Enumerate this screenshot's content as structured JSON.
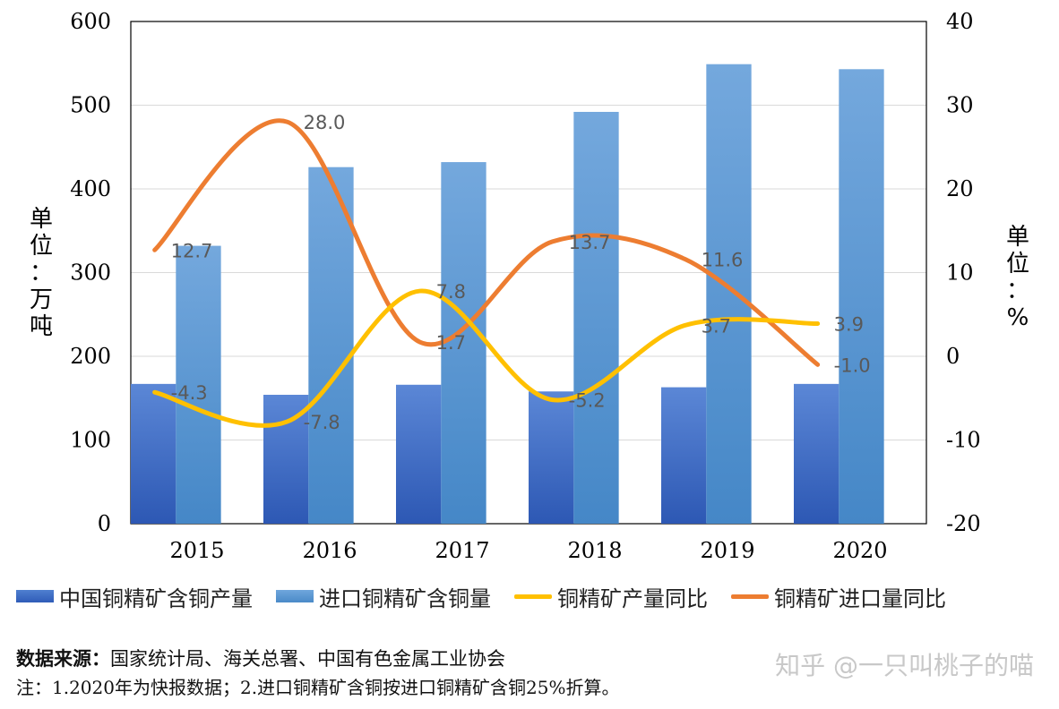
{
  "chart_data": {
    "type": "bar",
    "categories": [
      "2015",
      "2016",
      "2017",
      "2018",
      "2019",
      "2020"
    ],
    "ylabel_left": "单位：万吨",
    "ylabel_right": "单位：%",
    "ylim_left": [
      0,
      600
    ],
    "yticks_left": [
      "0",
      "100",
      "200",
      "300",
      "400",
      "500",
      "600"
    ],
    "ylim_right": [
      -20,
      40
    ],
    "yticks_right": [
      "-20",
      "-10",
      "0",
      "10",
      "20",
      "30",
      "40"
    ],
    "grid": true,
    "legend_position": "bottom",
    "series": [
      {
        "name": "中国铜精矿含铜产量",
        "type": "bar",
        "axis": "left",
        "color": "#4472C4",
        "values": [
          167,
          154,
          166,
          158,
          163,
          167
        ]
      },
      {
        "name": "进口铜精矿含铜量",
        "type": "bar",
        "axis": "left",
        "color": "#5B9BD5",
        "values": [
          332,
          426,
          432,
          492,
          549,
          543
        ]
      },
      {
        "name": "铜精矿产量同比",
        "type": "line",
        "axis": "right",
        "color": "#FFC000",
        "values": [
          -4.3,
          -7.8,
          7.8,
          -5.2,
          3.7,
          3.9
        ],
        "labels": [
          "-4.3",
          "-7.8",
          "7.8",
          "-5.2",
          "3.7",
          "3.9"
        ]
      },
      {
        "name": "铜精矿进口量同比",
        "type": "line",
        "axis": "right",
        "color": "#ED7D31",
        "values": [
          12.7,
          28.0,
          1.7,
          13.7,
          11.6,
          -1.0
        ],
        "labels": [
          "12.7",
          "28.0",
          "1.7",
          "13.7",
          "11.6",
          "-1.0"
        ]
      }
    ]
  },
  "source": {
    "label": "数据来源：",
    "text": "国家统计局、海关总署、中国有色金属工业协会"
  },
  "note": "注：1.2020年为快报数据；2.进口铜精矿含铜按进口铜精矿含铜25%折算。",
  "watermark": "知乎 @一只叫桃子的喵"
}
